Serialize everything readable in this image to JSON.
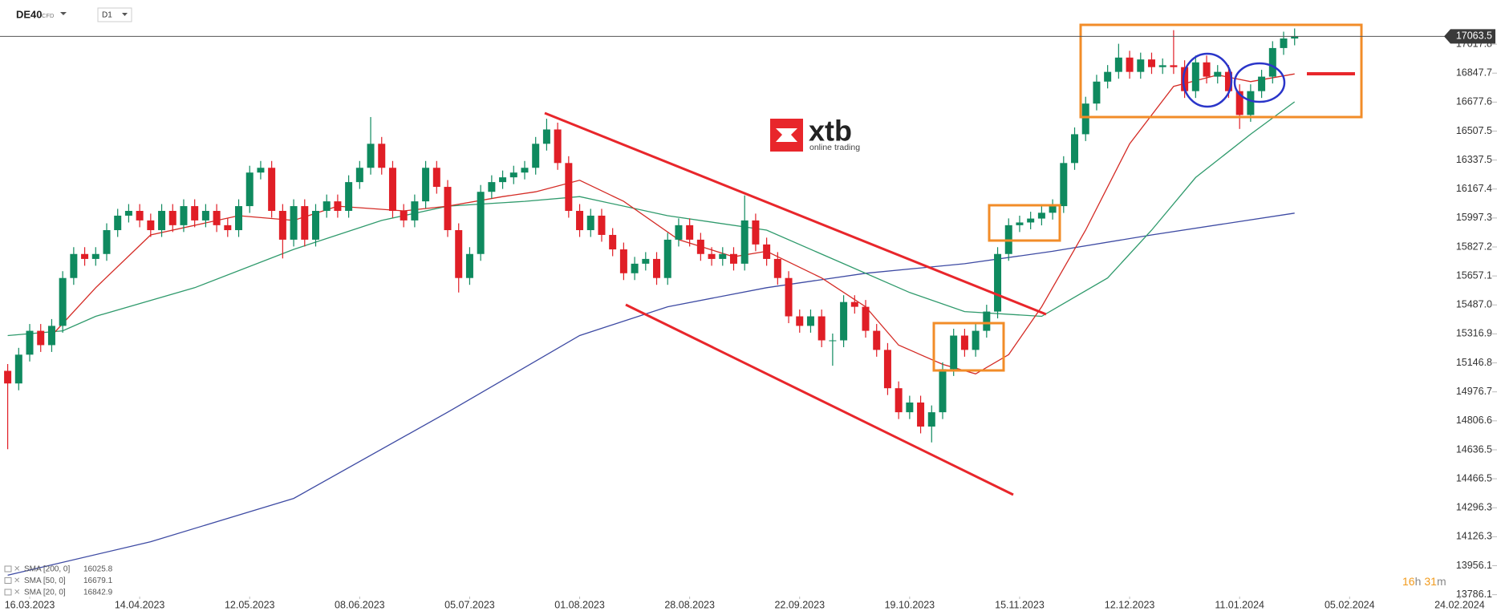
{
  "header": {
    "symbol": "DE40",
    "instrument_type": "CFD",
    "interval": "D1"
  },
  "logo": {
    "brand": "xtb",
    "tagline": "online trading"
  },
  "timer": {
    "hours": "16",
    "hours_unit": "h",
    "minutes": "31",
    "minutes_unit": "m"
  },
  "chart_data": {
    "type": "candlestick",
    "xlim": [
      -0.7,
      135.4
    ],
    "ylim": [
      13775,
      17277
    ],
    "xticks": [
      {
        "value": 2,
        "label": "16.03.2023"
      },
      {
        "value": 12,
        "label": "14.04.2023"
      },
      {
        "value": 22,
        "label": "12.05.2023"
      },
      {
        "value": 32,
        "label": "08.06.2023"
      },
      {
        "value": 42,
        "label": "05.07.2023"
      },
      {
        "value": 52,
        "label": "01.08.2023"
      },
      {
        "value": 62,
        "label": "28.08.2023"
      },
      {
        "value": 72,
        "label": "22.09.2023"
      },
      {
        "value": 82,
        "label": "19.10.2023"
      },
      {
        "value": 92,
        "label": "15.11.2023"
      },
      {
        "value": 102,
        "label": "12.12.2023"
      },
      {
        "value": 112,
        "label": "11.01.2024"
      },
      {
        "value": 122,
        "label": "05.02.2024"
      },
      {
        "value": 132,
        "label": "24.02.2024"
      }
    ],
    "yticks": [
      17017.8,
      16847.7,
      16677.6,
      16507.5,
      16337.5,
      16167.4,
      15997.3,
      15827.2,
      15657.1,
      {
        "value": 15487,
        "label": "15487.0"
      },
      15316.9,
      15146.8,
      14976.7,
      14806.6,
      14636.5,
      14466.5,
      14296.3,
      14126.3,
      13956.1,
      13786.1
    ],
    "up_color": "#0f8a5f",
    "down_color": "#e01e26",
    "last_price": 17063.5,
    "candles": {
      "open": [
        15100,
        15026,
        15195,
        15335,
        15251,
        15364,
        15645,
        15786,
        15757,
        15786,
        15926,
        16011,
        16039,
        15983,
        15926,
        16039,
        15955,
        16067,
        15983,
        16039,
        15955,
        15926,
        16067,
        16264,
        16292,
        16039,
        15870,
        16067,
        15870,
        16039,
        16095,
        16039,
        16208,
        16292,
        16433,
        16292,
        16039,
        15983,
        16095,
        16292,
        16180,
        15926,
        15645,
        15786,
        16151,
        16208,
        16236,
        16264,
        16292,
        16433,
        16517,
        16320,
        16039,
        15926,
        16011,
        15898,
        15813,
        15673,
        15729,
        15757,
        15645,
        15870,
        15955,
        15870,
        15786,
        15757,
        15786,
        15729,
        15983,
        15842,
        15757,
        15645,
        15420,
        15364,
        15420,
        15279,
        15279,
        15504,
        15476,
        15335,
        15223,
        14998,
        14857,
        14914,
        14773,
        14857,
        15110,
        15307,
        15223,
        15335,
        15448,
        15786,
        15955,
        15971,
        15994,
        16028,
        16067,
        16320,
        16489,
        16669,
        16798,
        16855,
        16939,
        16855,
        16928,
        16883,
        16894,
        16883,
        16742,
        16911,
        16827,
        16855,
        16742,
        16602,
        16742,
        16827,
        16995,
        17051
      ],
      "high": [
        15140,
        15235,
        15375,
        15375,
        15404,
        15685,
        15826,
        15826,
        15826,
        15966,
        16051,
        16079,
        16079,
        16023,
        16079,
        16079,
        16107,
        16107,
        16079,
        16079,
        15995,
        16107,
        16304,
        16332,
        16332,
        16079,
        16107,
        16107,
        16079,
        16135,
        16135,
        16248,
        16332,
        16590,
        16473,
        16332,
        16079,
        16135,
        16332,
        16332,
        16220,
        15966,
        15826,
        16191,
        16248,
        16276,
        16304,
        16332,
        16473,
        16580,
        16557,
        16360,
        16079,
        16051,
        16051,
        15938,
        15853,
        15769,
        15797,
        15797,
        15910,
        15995,
        15995,
        15910,
        15826,
        15826,
        15826,
        16130,
        16023,
        15882,
        15797,
        15685,
        15460,
        15460,
        15460,
        15319,
        15544,
        15544,
        15516,
        15375,
        15263,
        15038,
        14954,
        14954,
        14897,
        15150,
        15347,
        15347,
        15375,
        15488,
        15826,
        15995,
        16011,
        16034,
        16068,
        16107,
        16360,
        16529,
        16709,
        16838,
        16895,
        17020,
        16979,
        16968,
        16968,
        16934,
        17100,
        16923,
        16951,
        16951,
        16895,
        16895,
        16782,
        16782,
        16867,
        17035,
        17091,
        17110
      ],
      "low": [
        14640,
        14986,
        15155,
        15211,
        15211,
        15324,
        15605,
        15717,
        15717,
        15746,
        15886,
        15971,
        15943,
        15886,
        15886,
        15915,
        15915,
        15943,
        15943,
        15915,
        15886,
        15886,
        16027,
        16224,
        15999,
        15760,
        15830,
        15830,
        15830,
        15999,
        15999,
        15999,
        16168,
        16252,
        16252,
        15999,
        15943,
        15943,
        16055,
        16140,
        15886,
        15560,
        15605,
        15746,
        16111,
        16168,
        16196,
        16224,
        16252,
        16393,
        16280,
        15999,
        15886,
        15886,
        15858,
        15773,
        15633,
        15633,
        15689,
        15605,
        15605,
        15830,
        15830,
        15746,
        15717,
        15717,
        15689,
        15689,
        15802,
        15717,
        15605,
        15380,
        15324,
        15324,
        15239,
        15130,
        15239,
        15436,
        15295,
        15183,
        14958,
        14817,
        14817,
        14733,
        14680,
        14817,
        15070,
        15183,
        15183,
        15295,
        15408,
        15746,
        15915,
        15931,
        15954,
        15988,
        16027,
        16280,
        16449,
        16629,
        16758,
        16815,
        16815,
        16815,
        16843,
        16843,
        16843,
        16702,
        16702,
        16787,
        16787,
        16702,
        16520,
        16562,
        16702,
        16787,
        16955,
        17011
      ],
      "close": [
        15026,
        15195,
        15335,
        15251,
        15364,
        15645,
        15786,
        15757,
        15786,
        15926,
        16011,
        16039,
        15983,
        15926,
        16039,
        15955,
        16067,
        15983,
        16039,
        15955,
        15926,
        16067,
        16264,
        16292,
        16039,
        15870,
        16067,
        15870,
        16039,
        16095,
        16039,
        16208,
        16292,
        16433,
        16292,
        16039,
        15983,
        16095,
        16292,
        16180,
        15926,
        15645,
        15786,
        16151,
        16208,
        16236,
        16264,
        16292,
        16433,
        16517,
        16320,
        16039,
        15926,
        16011,
        15898,
        15813,
        15673,
        15729,
        15757,
        15645,
        15870,
        15955,
        15870,
        15786,
        15757,
        15786,
        15729,
        15983,
        15842,
        15757,
        15645,
        15420,
        15364,
        15420,
        15279,
        15279,
        15504,
        15476,
        15335,
        15223,
        14998,
        14857,
        14914,
        14773,
        14857,
        15110,
        15307,
        15223,
        15335,
        15448,
        15786,
        15955,
        15971,
        15994,
        16028,
        16067,
        16320,
        16489,
        16669,
        16798,
        16855,
        16939,
        16855,
        16928,
        16883,
        16894,
        16883,
        16742,
        16911,
        16827,
        16855,
        16742,
        16602,
        16742,
        16827,
        16995,
        17051,
        17063
      ]
    },
    "series": [
      {
        "name": "SMA [200, 0]",
        "color": "#3d4aa3",
        "last": 16025.8,
        "x": [
          0,
          13,
          26,
          40,
          52,
          60,
          69,
          78,
          87,
          95,
          104,
          117
        ],
        "values": [
          13900,
          14097,
          14351,
          14857,
          15307,
          15476,
          15588,
          15673,
          15729,
          15802,
          15898,
          16026
        ]
      },
      {
        "name": "SMA [50, 0]",
        "color": "#2f9a6c",
        "last": 16679.1,
        "x": [
          0,
          5,
          8,
          17,
          26,
          34,
          40,
          47,
          52,
          60,
          69,
          76,
          82,
          87,
          94,
          100,
          104,
          108,
          113,
          117
        ],
        "values": [
          15307,
          15335,
          15420,
          15588,
          15813,
          15983,
          16067,
          16095,
          16123,
          16011,
          15926,
          15729,
          15560,
          15448,
          15420,
          15645,
          15926,
          16235,
          16489,
          16679
        ]
      },
      {
        "name": "SMA [20, 0]",
        "color": "#d42b25",
        "last": 16842.9,
        "x": [
          4,
          8,
          13,
          21,
          26,
          30,
          36,
          40,
          45,
          48,
          52,
          56,
          61,
          66,
          69,
          74,
          78,
          81,
          85,
          88,
          91,
          94,
          98,
          102,
          106,
          110,
          113,
          117
        ],
        "values": [
          15307,
          15588,
          15898,
          16011,
          15983,
          16067,
          16039,
          16067,
          16123,
          16151,
          16219,
          16095,
          15870,
          15770,
          15802,
          15645,
          15476,
          15251,
          15138,
          15082,
          15195,
          15476,
          15926,
          16433,
          16770,
          16837,
          16798,
          16843
        ]
      }
    ]
  }
}
